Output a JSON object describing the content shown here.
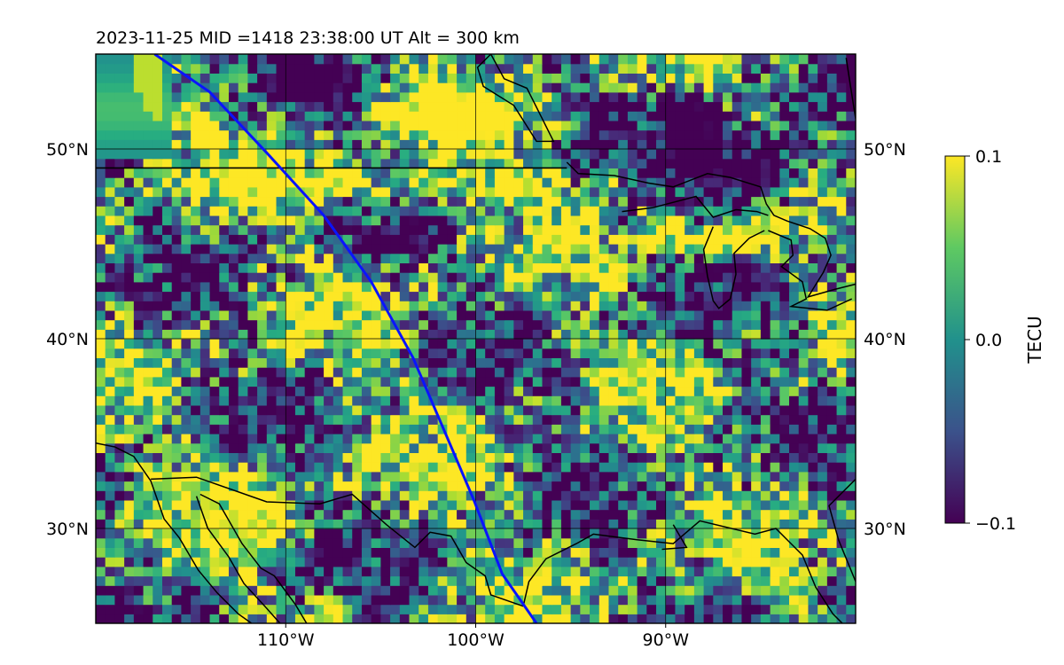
{
  "title": "2023-11-25  MID =1418    23:38:00  UT  Alt = 300 km",
  "colors": {
    "track": "#0a14ff",
    "coast": "#000000",
    "gridline": "#000000",
    "viridis_low": "#440154",
    "viridis_mid": "#21918c",
    "viridis_high": "#fde725"
  },
  "map": {
    "lon_range": [
      -120,
      -80
    ],
    "lat_range": [
      25,
      55
    ],
    "x_ticks": [
      {
        "value": -110,
        "label": "110°W"
      },
      {
        "value": -100,
        "label": "100°W"
      },
      {
        "value": -90,
        "label": "90°W"
      }
    ],
    "y_ticks": [
      {
        "value": 50,
        "label": "50°N"
      },
      {
        "value": 40,
        "label": "40°N"
      },
      {
        "value": 30,
        "label": "30°N"
      }
    ],
    "satellite_track": [
      [
        -116.9,
        55
      ],
      [
        -114,
        53
      ],
      [
        -111,
        49.8
      ],
      [
        -108,
        46.5
      ],
      [
        -105.5,
        43
      ],
      [
        -103.3,
        39
      ],
      [
        -101.8,
        35.5
      ],
      [
        -100.1,
        31.5
      ],
      [
        -98.6,
        27.6
      ],
      [
        -96.8,
        25
      ]
    ],
    "border_49n": [
      [
        -120,
        49
      ],
      [
        -95.2,
        49
      ]
    ],
    "coastlines": [
      [
        [
          -120,
          34.5
        ],
        [
          -119,
          34.3
        ],
        [
          -118,
          33.8
        ],
        [
          -117.1,
          32.5
        ],
        [
          -116.4,
          30.5
        ],
        [
          -115.6,
          29.5
        ],
        [
          -114.6,
          27.8
        ],
        [
          -113.6,
          26.6
        ],
        [
          -112.5,
          25.5
        ],
        [
          -111.8,
          25
        ]
      ],
      [
        [
          -117.1,
          32.6
        ],
        [
          -114.7,
          32.7
        ],
        [
          -111,
          31.4
        ],
        [
          -108.2,
          31.3
        ],
        [
          -106.5,
          31.8
        ],
        [
          -104.7,
          30.2
        ],
        [
          -103.2,
          29
        ],
        [
          -102.4,
          29.8
        ],
        [
          -101.3,
          29.6
        ],
        [
          -100.5,
          28.2
        ],
        [
          -99.5,
          27.5
        ],
        [
          -99.2,
          26.5
        ],
        [
          -97.5,
          25.9
        ]
      ],
      [
        [
          -114.7,
          31.7
        ],
        [
          -114.1,
          30
        ],
        [
          -113,
          28.5
        ],
        [
          -112.2,
          27.1
        ],
        [
          -111.1,
          25.9
        ],
        [
          -110.3,
          25
        ]
      ],
      [
        [
          -114.5,
          31.8
        ],
        [
          -113.5,
          31.3
        ],
        [
          -112.3,
          29.2
        ],
        [
          -111.3,
          27.9
        ],
        [
          -110.6,
          27.5
        ],
        [
          -109.5,
          26
        ],
        [
          -108.9,
          25
        ]
      ],
      [
        [
          -97.5,
          25.9
        ],
        [
          -97.2,
          27.2
        ],
        [
          -96.3,
          28.4
        ],
        [
          -94.7,
          29.2
        ],
        [
          -93.8,
          29.7
        ],
        [
          -91.5,
          29.4
        ],
        [
          -89.6,
          29.2
        ],
        [
          -88.2,
          30.4
        ],
        [
          -85.3,
          29.7
        ],
        [
          -84.2,
          30.0
        ],
        [
          -82.8,
          28.6
        ],
        [
          -82.1,
          26.9
        ],
        [
          -81.2,
          25.5
        ],
        [
          -80.7,
          25
        ]
      ],
      [
        [
          -89.6,
          30.2
        ],
        [
          -88.9,
          29.0
        ],
        [
          -90.2,
          28.9
        ]
      ],
      [
        [
          -80,
          27.2
        ],
        [
          -80.9,
          29.4
        ],
        [
          -81.4,
          31.2
        ],
        [
          -80,
          32.6
        ]
      ],
      [
        [
          -99.2,
          55
        ],
        [
          -98.5,
          53.7
        ],
        [
          -97.3,
          53.2
        ],
        [
          -96.5,
          51.6
        ],
        [
          -95.9,
          50.4
        ],
        [
          -96.8,
          50.4
        ],
        [
          -98,
          52.3
        ],
        [
          -99.6,
          53.3
        ],
        [
          -99.9,
          54.3
        ],
        [
          -99.2,
          55
        ]
      ],
      [
        [
          -95.2,
          49.3
        ],
        [
          -94.6,
          48.7
        ],
        [
          -92.7,
          48.6
        ],
        [
          -90.9,
          48.2
        ],
        [
          -89.6,
          48.0
        ],
        [
          -87.8,
          48.7
        ],
        [
          -86.6,
          48.5
        ],
        [
          -85,
          48.0
        ],
        [
          -84.7,
          47.1
        ],
        [
          -84.3,
          46.5
        ],
        [
          -83.6,
          46.2
        ],
        [
          -82.4,
          45.8
        ],
        [
          -81.6,
          45.3
        ],
        [
          -81.3,
          44.4
        ],
        [
          -81.7,
          43.5
        ],
        [
          -82.5,
          42.2
        ],
        [
          -81.1,
          42.6
        ],
        [
          -79.9,
          42.9
        ]
      ],
      [
        [
          -92.3,
          46.7
        ],
        [
          -90.7,
          46.9
        ],
        [
          -88.4,
          47.5
        ],
        [
          -87.5,
          46.4
        ],
        [
          -86.3,
          46.8
        ],
        [
          -85.2,
          46.7
        ],
        [
          -84.6,
          46.5
        ]
      ],
      [
        [
          -87.5,
          45.9
        ],
        [
          -88.0,
          44.7
        ],
        [
          -87.8,
          43.3
        ],
        [
          -87.5,
          42.0
        ],
        [
          -87.2,
          41.6
        ],
        [
          -86.6,
          42.1
        ],
        [
          -86.3,
          43.4
        ],
        [
          -86.4,
          44.5
        ],
        [
          -85.6,
          45.3
        ],
        [
          -84.8,
          45.7
        ]
      ],
      [
        [
          -84.6,
          45.7
        ],
        [
          -83.4,
          45.2
        ],
        [
          -83.3,
          44.4
        ],
        [
          -83.9,
          43.8
        ],
        [
          -82.8,
          43.0
        ],
        [
          -82.6,
          42.1
        ],
        [
          -83.4,
          41.7
        ],
        [
          -81.5,
          41.5
        ],
        [
          -80.2,
          42.1
        ]
      ],
      [
        [
          -80.5,
          54.8
        ],
        [
          -80.3,
          53.5
        ],
        [
          -80.0,
          51.6
        ]
      ]
    ]
  },
  "colorbar": {
    "label": "TECU",
    "ticks": [
      {
        "value": 0.1,
        "label": "0.1"
      },
      {
        "value": 0.0,
        "label": "0.0"
      },
      {
        "value": -0.1,
        "label": "−0.1"
      }
    ]
  }
}
